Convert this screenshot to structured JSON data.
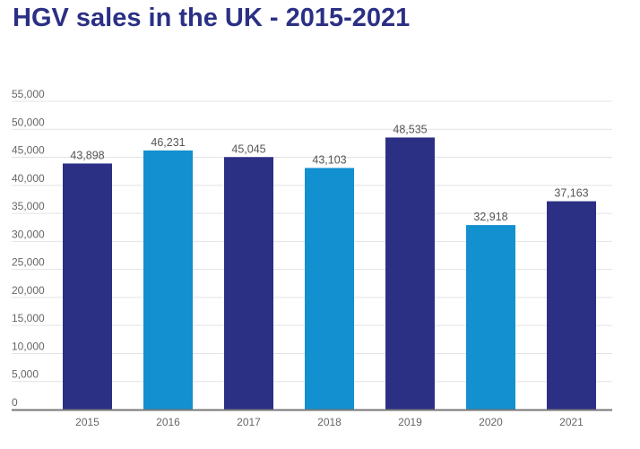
{
  "chart_data": {
    "type": "bar",
    "title": "HGV sales in the UK - 2015-2021",
    "categories": [
      "2015",
      "2016",
      "2017",
      "2018",
      "2019",
      "2020",
      "2021"
    ],
    "values": [
      43898,
      46231,
      45045,
      43103,
      48535,
      32918,
      37163
    ],
    "data_labels": [
      "43,898",
      "46,231",
      "45,045",
      "43,103",
      "48,535",
      "32,918",
      "37,163"
    ],
    "bar_colors": [
      "#2b3085",
      "#1290d0",
      "#2b3085",
      "#1290d0",
      "#2b3085",
      "#1290d0",
      "#2b3085"
    ],
    "ylim": [
      0,
      55000
    ],
    "yticks": [
      "0",
      "5,000",
      "10,000",
      "15,000",
      "20,000",
      "25,000",
      "30,000",
      "35,000",
      "40,000",
      "45,000",
      "50,000",
      "55,000"
    ],
    "xlabel": "",
    "ylabel": "",
    "grid": true,
    "legend": "none"
  }
}
